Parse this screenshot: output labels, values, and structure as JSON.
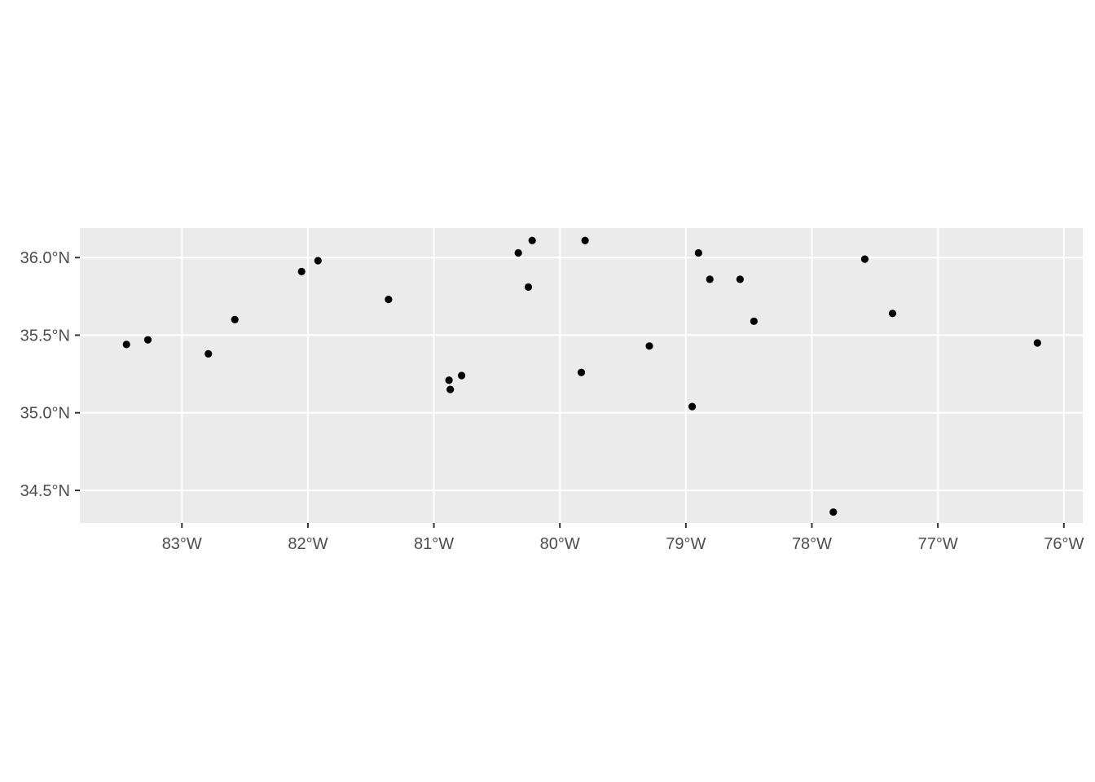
{
  "chart_data": {
    "type": "scatter",
    "title": "",
    "xlabel": "",
    "ylabel": "",
    "xlim": [
      -83.81,
      -75.85
    ],
    "ylim": [
      34.29,
      36.19
    ],
    "grid": true,
    "x_ticks": [
      {
        "value": -83,
        "label": "83°W"
      },
      {
        "value": -82,
        "label": "82°W"
      },
      {
        "value": -81,
        "label": "81°W"
      },
      {
        "value": -80,
        "label": "80°W"
      },
      {
        "value": -79,
        "label": "79°W"
      },
      {
        "value": -78,
        "label": "78°W"
      },
      {
        "value": -77,
        "label": "77°W"
      },
      {
        "value": -76,
        "label": "76°W"
      }
    ],
    "y_ticks": [
      {
        "value": 34.5,
        "label": "34.5°N"
      },
      {
        "value": 35.0,
        "label": "35.0°N"
      },
      {
        "value": 35.5,
        "label": "35.5°N"
      },
      {
        "value": 36.0,
        "label": "36.0°N"
      }
    ],
    "points": [
      {
        "x": -83.44,
        "y": 35.44
      },
      {
        "x": -83.27,
        "y": 35.47
      },
      {
        "x": -82.79,
        "y": 35.38
      },
      {
        "x": -82.58,
        "y": 35.6
      },
      {
        "x": -82.05,
        "y": 35.91
      },
      {
        "x": -81.92,
        "y": 35.98
      },
      {
        "x": -81.36,
        "y": 35.73
      },
      {
        "x": -80.88,
        "y": 35.21
      },
      {
        "x": -80.87,
        "y": 35.15
      },
      {
        "x": -80.78,
        "y": 35.24
      },
      {
        "x": -80.33,
        "y": 36.03
      },
      {
        "x": -80.25,
        "y": 35.81
      },
      {
        "x": -80.22,
        "y": 36.11
      },
      {
        "x": -79.83,
        "y": 35.26
      },
      {
        "x": -79.8,
        "y": 36.11
      },
      {
        "x": -79.29,
        "y": 35.43
      },
      {
        "x": -78.95,
        "y": 35.04
      },
      {
        "x": -78.9,
        "y": 36.03
      },
      {
        "x": -78.81,
        "y": 35.86
      },
      {
        "x": -78.57,
        "y": 35.86
      },
      {
        "x": -78.46,
        "y": 35.59
      },
      {
        "x": -77.83,
        "y": 34.36
      },
      {
        "x": -77.58,
        "y": 35.99
      },
      {
        "x": -77.36,
        "y": 35.64
      },
      {
        "x": -76.21,
        "y": 35.45
      }
    ],
    "colors": {
      "panel_background": "#ebebeb",
      "grid": "#ffffff",
      "point": "#000000",
      "tick_label": "#4d4d4d",
      "tick_mark": "#333333"
    }
  }
}
